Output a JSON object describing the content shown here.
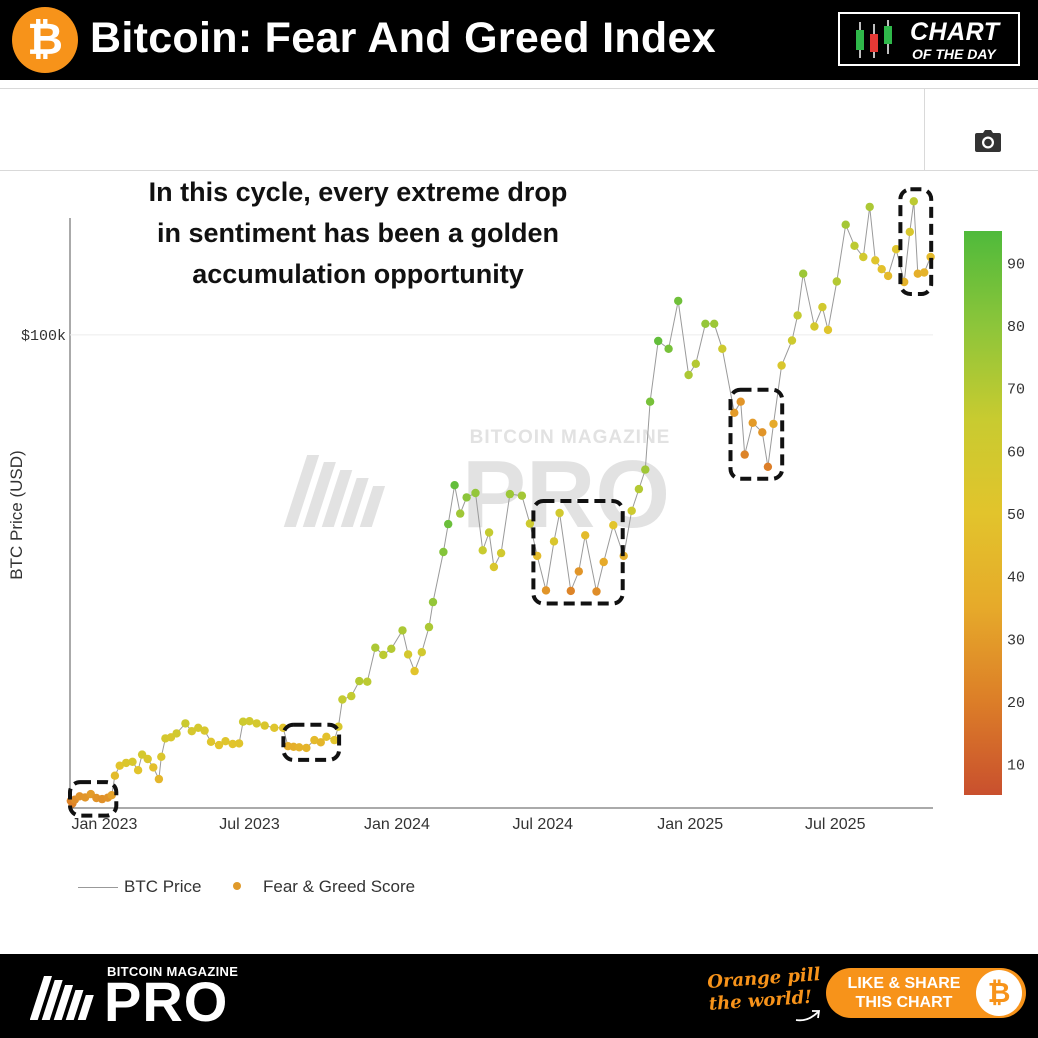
{
  "header": {
    "title": "Bitcoin: Fear And Greed Index",
    "logo_glyph": "₿",
    "badge": {
      "main": "CHART",
      "sub": "OF THE DAY"
    }
  },
  "toolbar": {
    "icon": "camera-icon"
  },
  "annotation": {
    "lines": [
      "In this cycle, every extreme drop",
      "in sentiment has been a golden",
      "accumulation opportunity"
    ]
  },
  "watermark": {
    "top": "BITCOIN MAGAZINE",
    "main": "PRO"
  },
  "chart_data": {
    "type": "scatter",
    "ylabel": "BTC Price (USD)",
    "y_ticks": [
      {
        "value": 100000,
        "label": "$100k"
      }
    ],
    "y_scale": "linear",
    "ylim": [
      15000,
      121000
    ],
    "x_ticks": [
      {
        "date": "2023-01-01",
        "label": "Jan 2023"
      },
      {
        "date": "2023-07-01",
        "label": "Jul 2023"
      },
      {
        "date": "2024-01-01",
        "label": "Jan 2024"
      },
      {
        "date": "2024-07-01",
        "label": "Jul 2024"
      },
      {
        "date": "2025-01-01",
        "label": "Jan 2025"
      },
      {
        "date": "2025-07-01",
        "label": "Jul 2025"
      }
    ],
    "xlim": [
      "2022-11-19",
      "2025-10-31"
    ],
    "colorbar": {
      "ticks": [
        10,
        20,
        30,
        40,
        50,
        60,
        70,
        80,
        90
      ],
      "range": [
        5,
        95
      ],
      "colors": [
        "#c9502e",
        "#dc7e28",
        "#e6aa2a",
        "#e2c42c",
        "#c8cb30",
        "#8cc53a",
        "#4fba3b"
      ]
    },
    "series": [
      {
        "name": "BTC Price",
        "style": "line",
        "color": "#9a9a9a"
      },
      {
        "name": "Fear & Greed Score",
        "style": "markers",
        "color": "#e09a2a"
      }
    ],
    "points": [
      [
        "2022-11-20",
        16300,
        22
      ],
      [
        "2022-11-22",
        15800,
        21
      ],
      [
        "2022-11-25",
        16500,
        25
      ],
      [
        "2022-12-01",
        17100,
        27
      ],
      [
        "2022-12-08",
        16900,
        28
      ],
      [
        "2022-12-15",
        17500,
        30
      ],
      [
        "2022-12-22",
        16800,
        27
      ],
      [
        "2022-12-29",
        16600,
        26
      ],
      [
        "2023-01-05",
        16850,
        27
      ],
      [
        "2023-01-10",
        17300,
        32
      ],
      [
        "2023-01-14",
        20800,
        45
      ],
      [
        "2023-01-20",
        22600,
        50
      ],
      [
        "2023-01-28",
        23100,
        54
      ],
      [
        "2023-02-05",
        23300,
        56
      ],
      [
        "2023-02-12",
        21800,
        50
      ],
      [
        "2023-02-17",
        24600,
        58
      ],
      [
        "2023-02-24",
        23800,
        55
      ],
      [
        "2023-03-03",
        22300,
        47
      ],
      [
        "2023-03-10",
        20200,
        42
      ],
      [
        "2023-03-13",
        24200,
        54
      ],
      [
        "2023-03-18",
        27500,
        58
      ],
      [
        "2023-03-25",
        27700,
        56
      ],
      [
        "2023-04-01",
        28400,
        60
      ],
      [
        "2023-04-12",
        30200,
        63
      ],
      [
        "2023-04-20",
        28800,
        57
      ],
      [
        "2023-04-28",
        29400,
        58
      ],
      [
        "2023-05-06",
        28900,
        56
      ],
      [
        "2023-05-14",
        26900,
        52
      ],
      [
        "2023-05-24",
        26300,
        50
      ],
      [
        "2023-06-01",
        27000,
        52
      ],
      [
        "2023-06-10",
        26500,
        50
      ],
      [
        "2023-06-18",
        26600,
        51
      ],
      [
        "2023-06-23",
        30500,
        62
      ],
      [
        "2023-07-01",
        30600,
        60
      ],
      [
        "2023-07-10",
        30200,
        58
      ],
      [
        "2023-07-20",
        29800,
        55
      ],
      [
        "2023-08-01",
        29400,
        52
      ],
      [
        "2023-08-12",
        29400,
        50
      ],
      [
        "2023-08-18",
        26100,
        38
      ],
      [
        "2023-08-25",
        26000,
        38
      ],
      [
        "2023-09-01",
        25900,
        40
      ],
      [
        "2023-09-10",
        25800,
        41
      ],
      [
        "2023-09-20",
        27200,
        44
      ],
      [
        "2023-09-28",
        26800,
        42
      ],
      [
        "2023-10-05",
        27800,
        48
      ],
      [
        "2023-10-15",
        27200,
        50
      ],
      [
        "2023-10-20",
        29600,
        56
      ],
      [
        "2023-10-25",
        34500,
        66
      ],
      [
        "2023-11-05",
        35100,
        66
      ],
      [
        "2023-11-15",
        37800,
        70
      ],
      [
        "2023-11-25",
        37700,
        68
      ],
      [
        "2023-12-05",
        43800,
        72
      ],
      [
        "2023-12-15",
        42500,
        68
      ],
      [
        "2023-12-25",
        43600,
        70
      ],
      [
        "2024-01-08",
        46900,
        72
      ],
      [
        "2024-01-15",
        42600,
        58
      ],
      [
        "2024-01-23",
        39600,
        50
      ],
      [
        "2024-02-01",
        43000,
        60
      ],
      [
        "2024-02-10",
        47500,
        72
      ],
      [
        "2024-02-15",
        52000,
        78
      ],
      [
        "2024-02-28",
        61000,
        82
      ],
      [
        "2024-03-05",
        66000,
        88
      ],
      [
        "2024-03-13",
        73000,
        90
      ],
      [
        "2024-03-20",
        67900,
        75
      ],
      [
        "2024-03-28",
        70800,
        80
      ],
      [
        "2024-04-08",
        71600,
        78
      ],
      [
        "2024-04-17",
        61300,
        65
      ],
      [
        "2024-04-25",
        64500,
        66
      ],
      [
        "2024-05-01",
        58300,
        55
      ],
      [
        "2024-05-10",
        60800,
        60
      ],
      [
        "2024-05-21",
        71400,
        76
      ],
      [
        "2024-06-05",
        71100,
        74
      ],
      [
        "2024-06-15",
        66100,
        62
      ],
      [
        "2024-06-24",
        60300,
        45
      ],
      [
        "2024-07-05",
        54100,
        28
      ],
      [
        "2024-07-15",
        62900,
        55
      ],
      [
        "2024-07-22",
        68000,
        60
      ],
      [
        "2024-08-05",
        54000,
        22
      ],
      [
        "2024-08-15",
        57500,
        28
      ],
      [
        "2024-08-23",
        64000,
        45
      ],
      [
        "2024-09-06",
        53900,
        25
      ],
      [
        "2024-09-15",
        59200,
        35
      ],
      [
        "2024-09-27",
        65800,
        50
      ],
      [
        "2024-10-10",
        60300,
        38
      ],
      [
        "2024-10-20",
        68400,
        62
      ],
      [
        "2024-10-29",
        72300,
        70
      ],
      [
        "2024-11-06",
        75800,
        75
      ],
      [
        "2024-11-12",
        88000,
        85
      ],
      [
        "2024-11-22",
        98900,
        90
      ],
      [
        "2024-12-05",
        97500,
        85
      ],
      [
        "2024-12-17",
        106100,
        87
      ],
      [
        "2024-12-30",
        92800,
        72
      ],
      [
        "2025-01-08",
        94800,
        70
      ],
      [
        "2025-01-20",
        102000,
        78
      ],
      [
        "2025-01-31",
        102000,
        76
      ],
      [
        "2025-02-10",
        97500,
        62
      ],
      [
        "2025-02-25",
        86000,
        30
      ],
      [
        "2025-03-05",
        88000,
        28
      ],
      [
        "2025-03-10",
        78500,
        22
      ],
      [
        "2025-03-20",
        84200,
        30
      ],
      [
        "2025-04-01",
        82500,
        28
      ],
      [
        "2025-04-08",
        76300,
        20
      ],
      [
        "2025-04-15",
        84000,
        35
      ],
      [
        "2025-04-25",
        94500,
        55
      ],
      [
        "2025-05-08",
        99000,
        62
      ],
      [
        "2025-05-15",
        103500,
        66
      ],
      [
        "2025-05-22",
        111000,
        76
      ],
      [
        "2025-06-05",
        101500,
        58
      ],
      [
        "2025-06-15",
        105000,
        60
      ],
      [
        "2025-06-22",
        100900,
        52
      ],
      [
        "2025-07-03",
        109600,
        70
      ],
      [
        "2025-07-14",
        119800,
        74
      ],
      [
        "2025-07-25",
        116000,
        68
      ],
      [
        "2025-08-05",
        114000,
        60
      ],
      [
        "2025-08-13",
        123000,
        72
      ],
      [
        "2025-08-20",
        113400,
        52
      ],
      [
        "2025-08-28",
        111800,
        48
      ],
      [
        "2025-09-05",
        110600,
        44
      ],
      [
        "2025-09-15",
        115400,
        52
      ],
      [
        "2025-09-25",
        109500,
        40
      ],
      [
        "2025-10-02",
        118500,
        56
      ],
      [
        "2025-10-07",
        124000,
        68
      ],
      [
        "2025-10-12",
        111000,
        38
      ],
      [
        "2025-10-20",
        111200,
        40
      ],
      [
        "2025-10-28",
        114000,
        44
      ]
    ],
    "highlights": [
      {
        "from": "2022-11-19",
        "to": "2023-01-12"
      },
      {
        "from": "2023-08-16",
        "to": "2023-10-17"
      },
      {
        "from": "2024-06-23",
        "to": "2024-10-05"
      },
      {
        "from": "2025-02-24",
        "to": "2025-04-22"
      },
      {
        "from": "2025-09-24",
        "to": "2025-10-25"
      }
    ]
  },
  "legend": {
    "line_label": "BTC Price",
    "dot_label": "Fear & Greed Score"
  },
  "footer": {
    "brand_small": "BITCOIN MAGAZINE",
    "brand_big": "PRO",
    "tagline_1": "Orange pill",
    "tagline_2": "the world!",
    "share_line_1": "LIKE & SHARE",
    "share_line_2": "THIS CHART",
    "share_glyph": "₿"
  }
}
